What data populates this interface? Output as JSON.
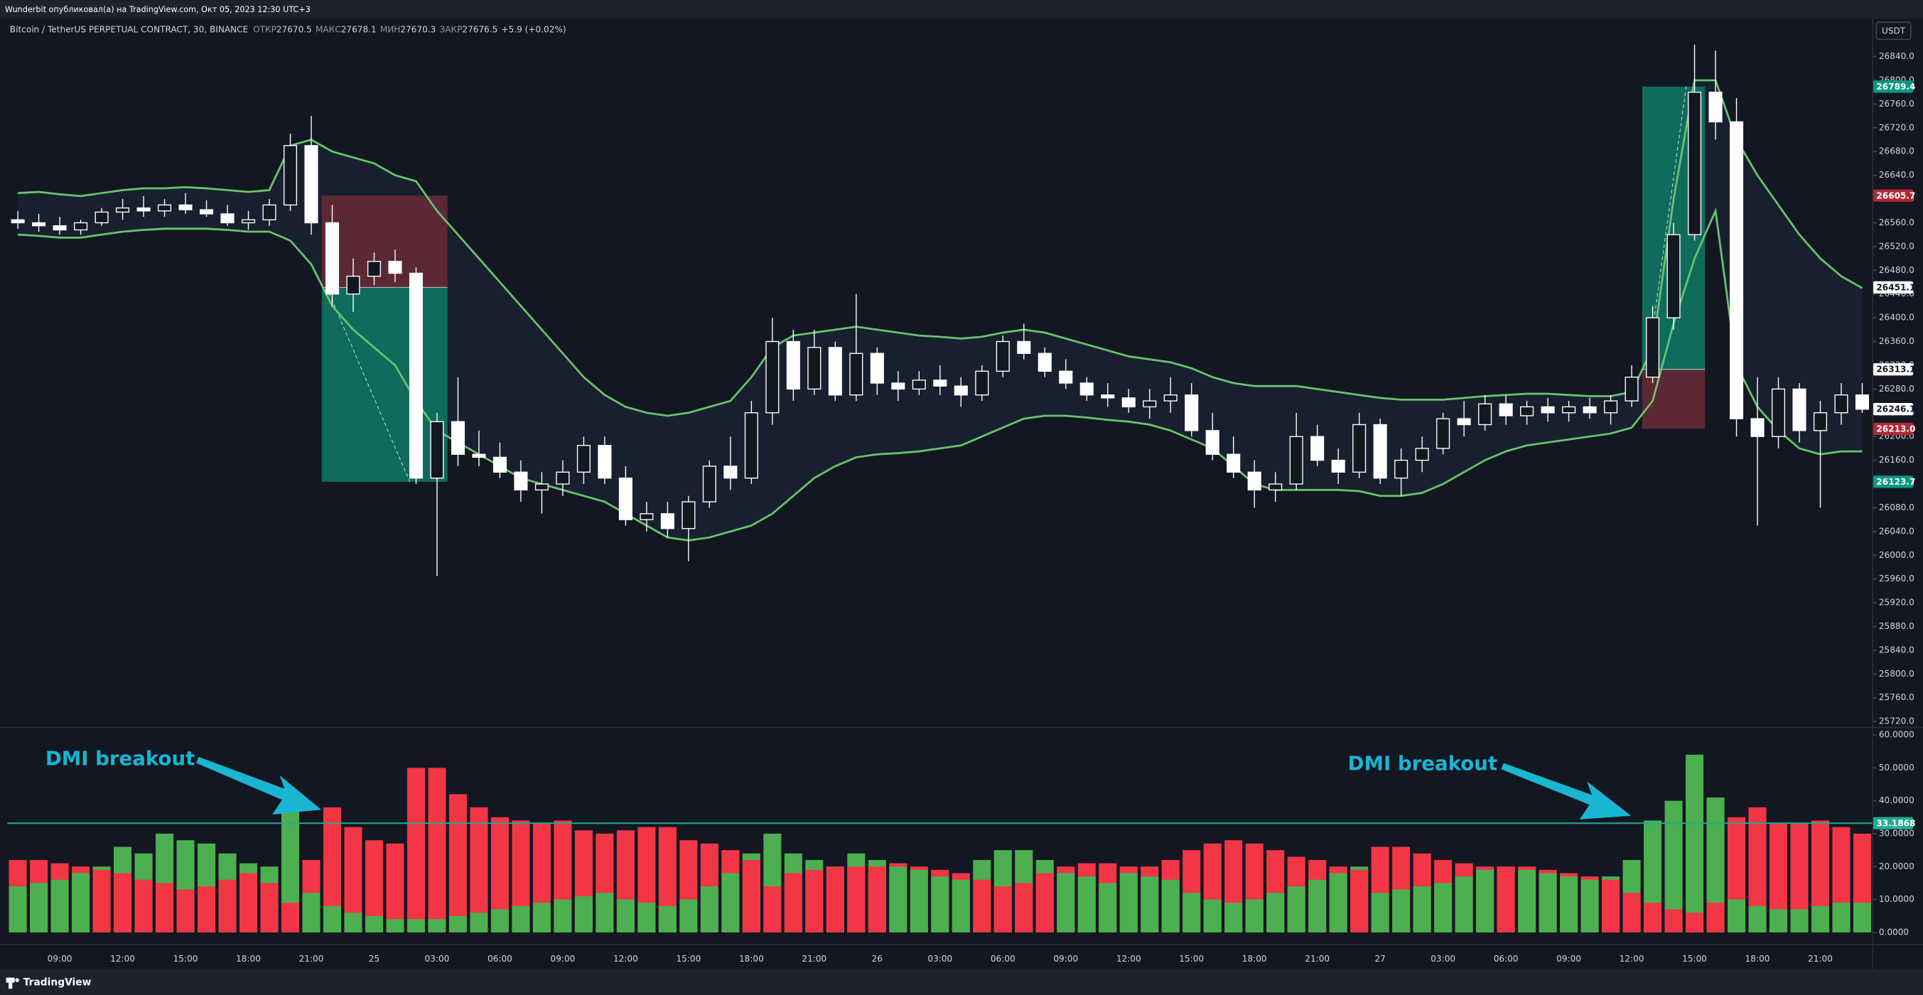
{
  "header": {
    "attribution": "Wunderbit опубликовал(а) на TradingView.com, Окт 05, 2023 12:30 UTC+3",
    "symbol": "Bitcoin / TetherUS PERPETUAL CONTRACT, 30, BINANCE",
    "ohlc": [
      {
        "label": "ОТКР",
        "value": 27670.5
      },
      {
        "label": "МАКС",
        "value": 27678.1
      },
      {
        "label": "МИН",
        "value": 27670.3
      },
      {
        "label": "ЗАКР",
        "value": 27676.5
      }
    ],
    "change": "+5.9 (+0.02%)",
    "currency": "USDT"
  },
  "footer": {
    "brand": "TradingView"
  },
  "annotations": [
    "DMI breakout",
    "DMI breakout"
  ],
  "chart_data": [
    {
      "type": "candlestick",
      "categories": [
        null,
        null,
        "09:00",
        null,
        null,
        "12:00",
        null,
        null,
        "15:00",
        null,
        null,
        "18:00",
        null,
        null,
        "21:00",
        null,
        null,
        "25",
        null,
        null,
        "03:00",
        null,
        null,
        "06:00",
        null,
        null,
        "09:00",
        null,
        null,
        "12:00",
        null,
        null,
        "15:00",
        null,
        null,
        "18:00",
        null,
        null,
        "21:00",
        null,
        null,
        "26",
        null,
        null,
        "03:00",
        null,
        null,
        "06:00",
        null,
        null,
        "09:00",
        null,
        null,
        "12:00",
        null,
        null,
        "15:00",
        null,
        null,
        "18:00",
        null,
        null,
        "21:00",
        null,
        null,
        "27",
        null,
        null,
        "03:00",
        null,
        null,
        "06:00",
        null,
        null,
        "09:00",
        null,
        null,
        "12:00",
        null,
        null,
        "15:00",
        null,
        null,
        "18:00",
        null,
        null,
        "21:00",
        null,
        null
      ],
      "open": [
        26565,
        26560,
        26555,
        26548,
        26560,
        26578,
        26585,
        26580,
        26590,
        26582,
        26575,
        26560,
        26565,
        26590,
        26690,
        26560,
        26440,
        26470,
        26495,
        26475,
        26130,
        26225,
        26170,
        26165,
        26140,
        26110,
        26120,
        26140,
        26185,
        26130,
        26060,
        26070,
        26045,
        26090,
        26150,
        26130,
        26240,
        26360,
        26280,
        26350,
        26270,
        26340,
        26290,
        26280,
        26295,
        26285,
        26270,
        26310,
        26360,
        26340,
        26310,
        26290,
        26270,
        26265,
        26250,
        26260,
        26270,
        26210,
        26170,
        26140,
        26110,
        26120,
        26200,
        26160,
        26140,
        26220,
        26130,
        26160,
        26180,
        26230,
        26220,
        26255,
        26235,
        26250,
        26240,
        26250,
        26240,
        26260,
        26300,
        26400,
        26540,
        26780,
        26730,
        26230,
        26200,
        26280,
        26210,
        26240,
        26270
      ],
      "high": [
        26580,
        26575,
        26570,
        26565,
        26585,
        26600,
        26605,
        26600,
        26610,
        26598,
        26590,
        26580,
        26600,
        26710,
        26740,
        26590,
        26500,
        26510,
        26515,
        26485,
        26240,
        26300,
        26210,
        26190,
        26160,
        26140,
        26160,
        26200,
        26200,
        26150,
        26090,
        26090,
        26100,
        26160,
        26200,
        26260,
        26400,
        26380,
        26380,
        26360,
        26440,
        26350,
        26310,
        26310,
        26320,
        26300,
        26320,
        26370,
        26390,
        26350,
        26330,
        26300,
        26290,
        26280,
        26280,
        26300,
        26290,
        26240,
        26200,
        26160,
        26140,
        26240,
        26220,
        26180,
        26240,
        26230,
        26180,
        26200,
        26240,
        26260,
        26270,
        26270,
        26260,
        26265,
        26260,
        26265,
        26270,
        26320,
        26420,
        26560,
        26860,
        26850,
        26770,
        26300,
        26300,
        26290,
        26260,
        26290,
        26290
      ],
      "low": [
        26550,
        26545,
        26540,
        26540,
        26555,
        26565,
        26570,
        26570,
        26575,
        26570,
        26555,
        26548,
        26555,
        26580,
        26540,
        26420,
        26410,
        26455,
        26460,
        26120,
        25965,
        26150,
        26150,
        26130,
        26090,
        26070,
        26100,
        26120,
        26120,
        26050,
        26040,
        26030,
        25990,
        26080,
        26110,
        26120,
        26220,
        26260,
        26270,
        26260,
        26260,
        26270,
        26260,
        26270,
        26270,
        26250,
        26260,
        26300,
        26330,
        26300,
        26280,
        26260,
        26250,
        26240,
        26230,
        26240,
        26200,
        26160,
        26130,
        26080,
        26090,
        26110,
        26150,
        26120,
        26130,
        26120,
        26100,
        26140,
        26170,
        26200,
        26210,
        26220,
        26220,
        26225,
        26225,
        26230,
        26220,
        26250,
        26290,
        26380,
        26530,
        26700,
        26200,
        26050,
        26180,
        26190,
        26080,
        26220,
        26240
      ],
      "close": [
        26560,
        26555,
        26548,
        26560,
        26578,
        26585,
        26580,
        26590,
        26582,
        26575,
        26560,
        26565,
        26590,
        26690,
        26560,
        26440,
        26470,
        26495,
        26475,
        26130,
        26225,
        26170,
        26165,
        26140,
        26110,
        26120,
        26140,
        26185,
        26130,
        26060,
        26070,
        26045,
        26090,
        26150,
        26130,
        26240,
        26360,
        26280,
        26350,
        26270,
        26340,
        26290,
        26280,
        26295,
        26285,
        26270,
        26310,
        26360,
        26340,
        26310,
        26290,
        26270,
        26265,
        26250,
        26260,
        26270,
        26210,
        26170,
        26140,
        26110,
        26120,
        26200,
        26160,
        26140,
        26220,
        26130,
        26160,
        26180,
        26230,
        26220,
        26255,
        26235,
        26250,
        26240,
        26250,
        26240,
        26260,
        26300,
        26400,
        26540,
        26780,
        26730,
        26230,
        26200,
        26280,
        26210,
        26240,
        26270,
        26246
      ],
      "candle_color": "#ffffff",
      "bands": {
        "color": "#68c46c",
        "fill": "#18202f",
        "upper": [
          26610,
          26612,
          26608,
          26605,
          26610,
          26615,
          26618,
          26618,
          26620,
          26618,
          26615,
          26612,
          26615,
          26690,
          26700,
          26680,
          26670,
          26660,
          26640,
          26630,
          26580,
          26540,
          26500,
          26460,
          26420,
          26380,
          26340,
          26300,
          26270,
          26250,
          26240,
          26235,
          26240,
          26250,
          26260,
          26300,
          26350,
          26370,
          26375,
          26380,
          26385,
          26380,
          26375,
          26370,
          26368,
          26365,
          26368,
          26375,
          26380,
          26375,
          26365,
          26355,
          26345,
          26335,
          26330,
          26325,
          26315,
          26300,
          26290,
          26285,
          26285,
          26285,
          26280,
          26275,
          26270,
          26265,
          26262,
          26262,
          26262,
          26265,
          26268,
          26270,
          26272,
          26272,
          26270,
          26268,
          26268,
          26275,
          26350,
          26600,
          26800,
          26800,
          26700,
          26640,
          26590,
          26540,
          26500,
          26470,
          26450
        ],
        "lower": [
          26540,
          26538,
          26535,
          26535,
          26540,
          26545,
          26548,
          26550,
          26550,
          26550,
          26548,
          26545,
          26545,
          26530,
          26490,
          26420,
          26380,
          26350,
          26320,
          26260,
          26210,
          26190,
          26170,
          26150,
          26130,
          26120,
          26110,
          26100,
          26090,
          26070,
          26050,
          26030,
          26025,
          26030,
          26040,
          26050,
          26070,
          26100,
          26130,
          26150,
          26165,
          26170,
          26172,
          26175,
          26180,
          26185,
          26200,
          26215,
          26230,
          26235,
          26235,
          26232,
          26228,
          26225,
          26220,
          26210,
          26195,
          26180,
          26150,
          26120,
          26110,
          26110,
          26110,
          26110,
          26108,
          26100,
          26100,
          26105,
          26120,
          26140,
          26160,
          26175,
          26185,
          26190,
          26195,
          26200,
          26205,
          26215,
          26260,
          26390,
          26500,
          26580,
          26320,
          26250,
          26210,
          26180,
          26170,
          26175,
          26175
        ]
      },
      "positions": [
        {
          "start": 15,
          "end": 20,
          "entry": 26451.1,
          "stop": 26605.7,
          "target": 26123.7
        },
        {
          "start": 78,
          "end": 80,
          "entry": 26313.1,
          "stop": {
            "value": 26213,
            "label": "26213.0"
          },
          "target": 26789.4
        }
      ],
      "profit_color": "#0f6b5c",
      "loss_color": "#5c2834",
      "profit_label_color": "#089981",
      "loss_label_color": "#b22833",
      "last_price": 26246.1,
      "ylim": [
        25712,
        26904
      ],
      "yticks": [
        {
          "value": 26840,
          "label": "26840.0"
        },
        {
          "value": 26800,
          "label": "26800.0"
        },
        {
          "value": 26760,
          "label": "26760.0"
        },
        {
          "value": 26720,
          "label": "26720.0"
        },
        {
          "value": 26680,
          "label": "26680.0"
        },
        {
          "value": 26640,
          "label": "26640.0"
        },
        {
          "value": 26600,
          "label": "26600.0"
        },
        {
          "value": 26560,
          "label": "26560.0"
        },
        {
          "value": 26520,
          "label": "26520.0"
        },
        {
          "value": 26480,
          "label": "26480.0"
        },
        {
          "value": 26440,
          "label": "26440.0"
        },
        {
          "value": 26400,
          "label": "26400.0"
        },
        {
          "value": 26360,
          "label": "26360.0"
        },
        {
          "value": 26320,
          "label": "26320.0"
        },
        {
          "value": 26280,
          "label": "26280.0"
        },
        {
          "value": 26240,
          "label": "26240.0"
        },
        {
          "value": 26200,
          "label": "26200.0"
        },
        {
          "value": 26160,
          "label": "26160.0"
        },
        {
          "value": 26120,
          "label": "26120.0"
        },
        {
          "value": 26080,
          "label": "26080.0"
        },
        {
          "value": 26040,
          "label": "26040.0"
        },
        {
          "value": 26000,
          "label": "26000.0"
        },
        {
          "value": 25960,
          "label": "25960.0"
        },
        {
          "value": 25920,
          "label": "25920.0"
        },
        {
          "value": 25880,
          "label": "25880.0"
        },
        {
          "value": 25840,
          "label": "25840.0"
        },
        {
          "value": 25800,
          "label": "25800.0"
        },
        {
          "value": 25760,
          "label": "25760.0"
        },
        {
          "value": 25720,
          "label": "25720.0"
        }
      ]
    },
    {
      "type": "bar",
      "series": [
        {
          "color": "#4caf50",
          "values": [
            14,
            15,
            16,
            18,
            20,
            26,
            24,
            30,
            28,
            27,
            24,
            21,
            20,
            37,
            12,
            8,
            6,
            5,
            4,
            4,
            4,
            5,
            6,
            7,
            8,
            9,
            10,
            11,
            12,
            10,
            9,
            8,
            10,
            14,
            18,
            24,
            30,
            24,
            22,
            20,
            24,
            22,
            20,
            19,
            17,
            16,
            22,
            25,
            25,
            22,
            18,
            17,
            15,
            18,
            17,
            16,
            12,
            10,
            9,
            10,
            12,
            14,
            16,
            18,
            20,
            12,
            13,
            14,
            15,
            17,
            19,
            20,
            19,
            18,
            17,
            16,
            17,
            22,
            34,
            40,
            54,
            41,
            10,
            8,
            7,
            7,
            8,
            9,
            9
          ]
        },
        {
          "color": "#f23645",
          "values": [
            22,
            22,
            21,
            20,
            19,
            18,
            16,
            15,
            13,
            14,
            16,
            18,
            15,
            9,
            22,
            38,
            32,
            28,
            27,
            50,
            50,
            42,
            38,
            35,
            34,
            33,
            34,
            31,
            30,
            31,
            32,
            32,
            28,
            27,
            25,
            22,
            14,
            18,
            19,
            20,
            20,
            20,
            21,
            20,
            19,
            18,
            16,
            14,
            15,
            18,
            20,
            21,
            21,
            20,
            20,
            22,
            25,
            27,
            28,
            27,
            25,
            23,
            22,
            20,
            19,
            26,
            26,
            24,
            22,
            21,
            20,
            20,
            20,
            19,
            18,
            17,
            16,
            12,
            9,
            7,
            6,
            9,
            35,
            38,
            33,
            33,
            34,
            32,
            30
          ]
        }
      ],
      "level": 33.1868,
      "level_color": "#22ab94",
      "ylim": [
        -3.7,
        61.9
      ],
      "yticks": [
        {
          "value": 60,
          "label": "60.0000"
        },
        {
          "value": 50,
          "label": "50.0000"
        },
        {
          "value": 40,
          "label": "40.0000"
        },
        {
          "value": 30,
          "label": "30.0000"
        },
        {
          "value": 20,
          "label": "20.0000"
        },
        {
          "value": 10,
          "label": "10.0000"
        },
        {
          "value": 0,
          "label": "0.0000"
        }
      ]
    }
  ]
}
